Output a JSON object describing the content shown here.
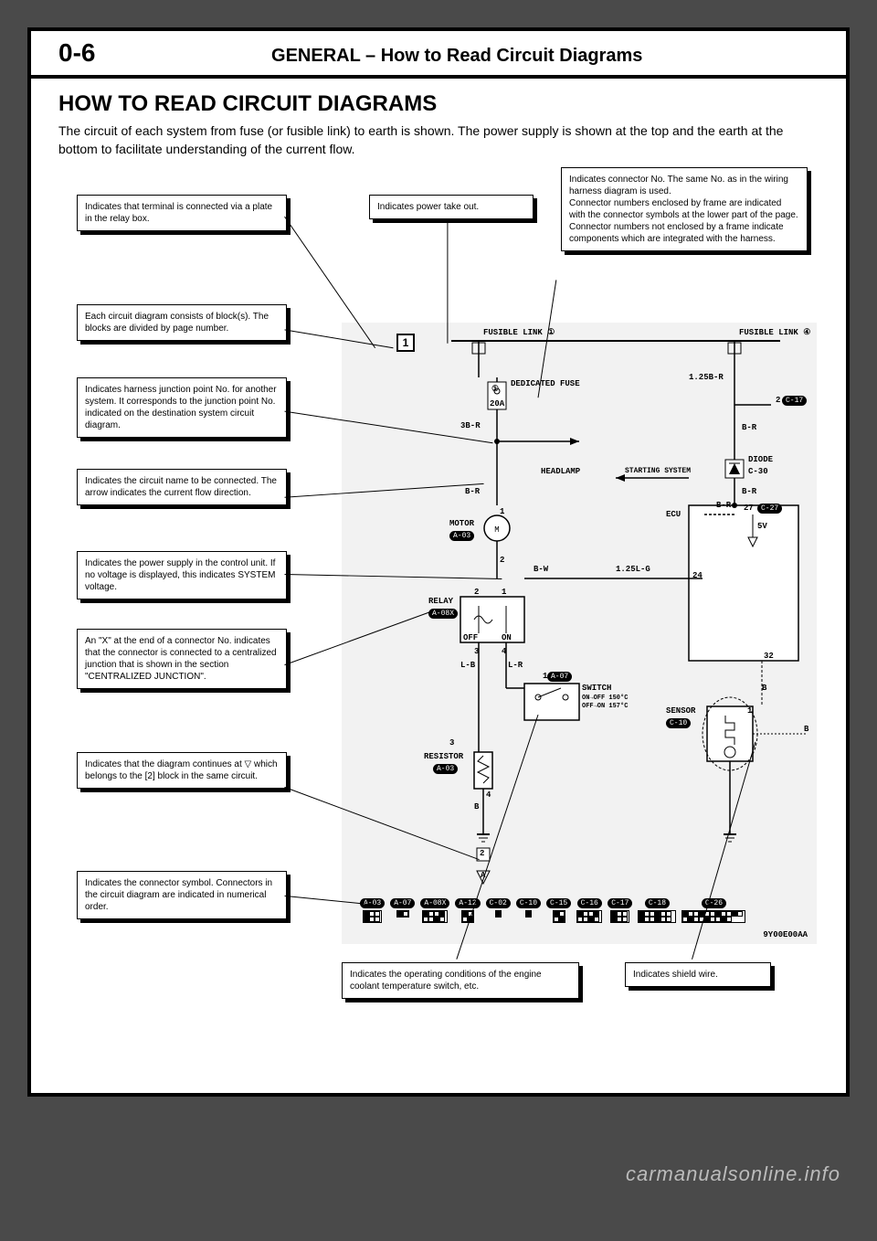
{
  "page_number": "0-6",
  "header_title": "GENERAL – How to Read Circuit Diagrams",
  "section_title": "HOW TO READ CIRCUIT DIAGRAMS",
  "intro_text": "The circuit of each system from fuse (or fusible link) to earth is shown. The power supply is shown at the top and the earth at the bottom to facilitate understanding of the current flow.",
  "callouts": {
    "c1": "Indicates that terminal is connected via a plate in the relay box.",
    "c2": "Indicates power take out.",
    "c3": "Indicates connector No. The same No. as in the wiring harness diagram is used.\nConnector numbers enclosed by frame are indicated with the connector symbols at the lower part of the page.\nConnector numbers not enclosed by a frame indicate components which are integrated with the harness.",
    "c4": "Each circuit diagram consists of block(s). The blocks are divided by page number.",
    "c5": "Indicates harness junction point No. for another system. It corresponds to the junction point No. indicated on the destination system circuit diagram.",
    "c6": "Indicates the circuit name to be connected. The arrow indicates the current flow direction.",
    "c7": "Indicates the power supply in the control unit. If no voltage is displayed, this indicates SYSTEM voltage.",
    "c8": "An \"X\" at the end of a connector No. indicates that the connector is connected to a centralized junction that is shown in the section \"CENTRALIZED JUNCTION\".",
    "c9": "Indicates that the diagram continues at ▽ which belongs to the [2] block in the same circuit.",
    "c10": "Indicates the connector symbol. Connectors in the circuit diagram are indicated in numerical order.",
    "c11": "Indicates the operating conditions of the engine coolant temperature switch, etc.",
    "c12": "Indicates shield wire."
  },
  "diagram": {
    "block_number": "1",
    "fusible_link_left": "FUSIBLE LINK ①",
    "fusible_link_right": "FUSIBLE LINK ④",
    "dedicated_fuse": "DEDICATED FUSE",
    "fuse_circle": "①",
    "fuse_amp": "20A",
    "wire_3br": "3B-R",
    "wire_125br": "1.25B-R",
    "wire_br": "B-R",
    "wire_bw": "B-W",
    "wire_125lg": "1.25L-G",
    "wire_lb": "L-B",
    "wire_lr": "L-R",
    "wire_b": "B",
    "headlamp": "HEADLAMP",
    "starting_system": "STARTING SYSTEM",
    "diode": "DIODE",
    "diode_conn": "C-30",
    "motor": "MOTOR",
    "motor_conn": "A-03",
    "ecu": "ECU",
    "ecu_5v": "5V",
    "relay": "RELAY",
    "relay_conn": "A-08X",
    "relay_off": "OFF",
    "relay_on": "ON",
    "switch": "SWITCH",
    "switch_conn": "A-07",
    "switch_on_off": "ON→OFF 150°C",
    "switch_off_on": "OFF→ON 157°C",
    "sensor": "SENSOR",
    "sensor_conn": "C-10",
    "resistor": "RESISTOR",
    "resistor_conn": "A-03",
    "conn_c17": "C-17",
    "conn_c27": "C-27",
    "pin_2": "2",
    "pin_24": "24",
    "pin_27": "27",
    "pin_32": "32",
    "node_1": "1",
    "node_2": "2",
    "node_3": "3",
    "node_4": "4",
    "tri_a": "A",
    "tri_num": "2",
    "ref_code": "9Y00E00AA"
  },
  "connector_row": [
    {
      "id": "A-03",
      "pins": 6
    },
    {
      "id": "A-07",
      "pins": 2
    },
    {
      "id": "A-08X",
      "pins": 8
    },
    {
      "id": "A-12",
      "pins": 4
    },
    {
      "id": "C-02",
      "pins": 1
    },
    {
      "id": "C-10",
      "pins": 1
    },
    {
      "id": "C-15",
      "pins": 4
    },
    {
      "id": "C-16",
      "pins": 8
    },
    {
      "id": "C-17",
      "pins": 6
    },
    {
      "id": "C-18",
      "pins": 12
    },
    {
      "id": "C-26",
      "pins": 20
    }
  ],
  "watermark": "carmanualsonline.info",
  "colors": {
    "page_bg": "#ffffff",
    "outer_bg": "#4a4a4a",
    "diagram_bg": "#f2f2f2",
    "line": "#000000"
  }
}
